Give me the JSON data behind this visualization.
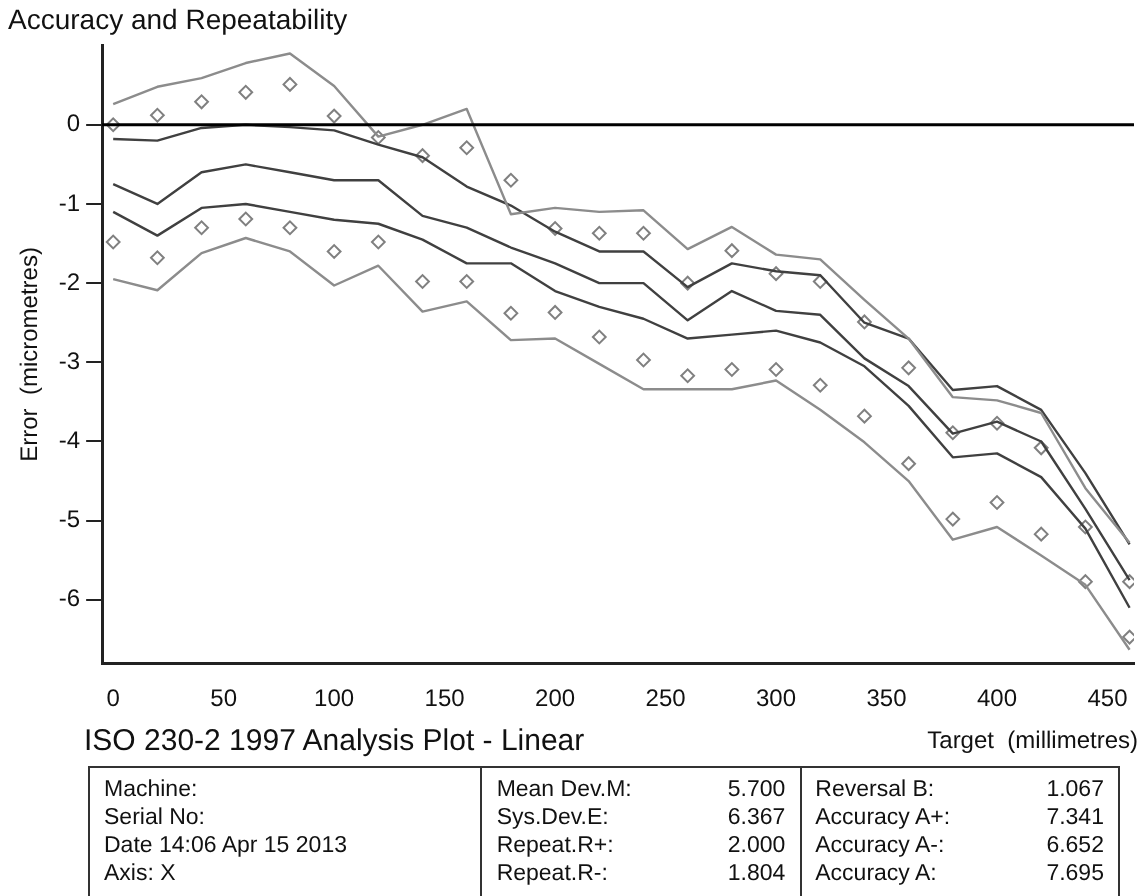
{
  "chart_data": {
    "type": "line",
    "title": "Accuracy and Repeatability",
    "xlabel": "Target  (millimetres)",
    "ylabel": "Error  (micrometres)",
    "x": [
      0,
      20,
      40,
      60,
      80,
      100,
      120,
      140,
      160,
      180,
      200,
      220,
      240,
      260,
      280,
      300,
      320,
      340,
      360,
      380,
      400,
      420,
      440,
      460
    ],
    "xlim": [
      -5,
      462
    ],
    "xticks": [
      0,
      50,
      100,
      150,
      200,
      250,
      300,
      350,
      400,
      450
    ],
    "ylim": [
      -6.8,
      1.0
    ],
    "yticks": [
      -6,
      -5,
      -4,
      -3,
      -2,
      -1,
      0
    ],
    "grid": false,
    "legend": false,
    "marker": "none",
    "line_style": "solid",
    "ref_lines": [
      {
        "axis": "y",
        "value": 0,
        "color": "#000000"
      }
    ],
    "series": [
      {
        "color": "#8c8c8c",
        "values": [
          0.26,
          0.48,
          0.59,
          0.78,
          0.9,
          0.49,
          -0.15,
          0,
          0.2,
          -1.13,
          -1.05,
          -1.1,
          -1.08,
          -1.57,
          -1.29,
          -1.64,
          -1.7,
          -2.21,
          -2.7,
          -3.44,
          -3.48,
          -3.64,
          -4.59,
          -5.28
        ]
      },
      {
        "color": "#8c8c8c",
        "values": [
          -1.95,
          -2.09,
          -1.62,
          -1.43,
          -1.6,
          -2.03,
          -1.78,
          -2.36,
          -2.23,
          -2.72,
          -2.7,
          -3.02,
          -3.34,
          -3.34,
          -3.34,
          -3.23,
          -3.6,
          -4.01,
          -4.5,
          -5.24,
          -5.08,
          -5.44,
          -5.81,
          -6.63
        ]
      },
      {
        "color": "#404040",
        "values": [
          -0.18,
          -0.2,
          -0.04,
          0,
          -0.03,
          -0.07,
          -0.25,
          -0.41,
          -0.78,
          -1.02,
          -1.35,
          -1.6,
          -1.6,
          -2.05,
          -1.75,
          -1.85,
          -1.9,
          -2.5,
          -2.7,
          -3.35,
          -3.3,
          -3.6,
          -4.4,
          -5.3
        ]
      },
      {
        "color": "#404040",
        "values": [
          -0.75,
          -1.0,
          -0.6,
          -0.5,
          -0.6,
          -0.7,
          -0.7,
          -1.15,
          -1.3,
          -1.55,
          -1.75,
          -2.0,
          -2.0,
          -2.47,
          -2.1,
          -2.35,
          -2.4,
          -2.95,
          -3.3,
          -3.9,
          -3.75,
          -4.0,
          -4.85,
          -5.75
        ]
      },
      {
        "color": "#404040",
        "values": [
          -1.1,
          -1.4,
          -1.05,
          -1.0,
          -1.1,
          -1.2,
          -1.25,
          -1.45,
          -1.75,
          -1.75,
          -2.1,
          -2.3,
          -2.45,
          -2.7,
          -2.65,
          -2.6,
          -2.75,
          -3.05,
          -3.55,
          -4.2,
          -4.15,
          -4.45,
          -5.1,
          -6.1
        ]
      },
      {
        "type": "scatter",
        "marker": "diamond",
        "color": "#808080",
        "values": [
          0,
          0.12,
          0.29,
          0.41,
          0.51,
          0.11,
          -0.16,
          -0.39,
          -0.29,
          -0.7,
          -1.31,
          -1.37,
          -1.37,
          -2.0,
          -1.59,
          -1.88,
          -1.98,
          -2.49,
          -3.07,
          -3.89,
          -3.77,
          -4.08,
          -5.08,
          -5.77
        ]
      },
      {
        "type": "scatter",
        "marker": "diamond",
        "color": "#808080",
        "values": [
          -1.48,
          -1.68,
          -1.3,
          -1.19,
          -1.3,
          -1.6,
          -1.48,
          -1.98,
          -1.98,
          -2.38,
          -2.37,
          -2.68,
          -2.97,
          -3.17,
          -3.09,
          -3.09,
          -3.29,
          -3.68,
          -4.28,
          -4.98,
          -4.77,
          -5.17,
          -5.77,
          -6.47
        ]
      }
    ],
    "annotations": [
      "ISO 230-2  1997  Analysis Plot - Linear",
      "Machine:",
      "Serial No:",
      "Date 14:06 Apr 15 2013",
      "Axis: X",
      "Mean Dev.M:",
      "5.700",
      "Sys.Dev.E:",
      "6.367",
      "Repeat.R+:",
      "2.000",
      "Repeat.R-:",
      "1.804",
      "Reversal B:",
      "1.067",
      "Accuracy A+:",
      "7.341",
      "Accuracy A-:",
      "6.652",
      "Accuracy A:",
      "7.695"
    ]
  }
}
